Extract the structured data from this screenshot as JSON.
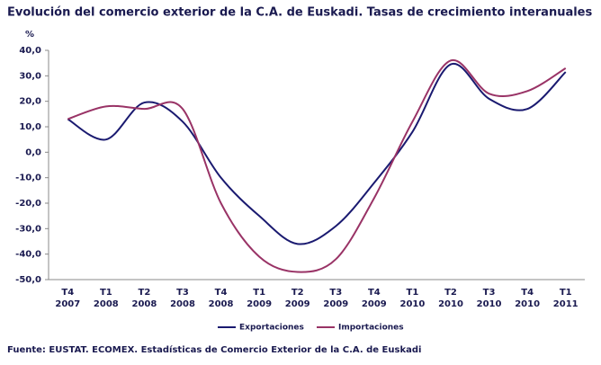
{
  "chart_data": {
    "type": "line",
    "title": "Evolución del comercio exterior de la C.A. de Euskadi. Tasas de crecimiento interanuales",
    "y_unit": "%",
    "source": "Fuente: EUSTAT. ECOMEX. Estadísticas de Comercio Exterior de la C.A. de Euskadi",
    "categories": [
      "T4 2007",
      "T1 2008",
      "T2 2008",
      "T3 2008",
      "T4 2008",
      "T1 2009",
      "T2 2009",
      "T3 2009",
      "T4 2009",
      "T1 2010",
      "T2 2010",
      "T3 2010",
      "T4 2010",
      "T1 2011"
    ],
    "series": [
      {
        "name": "Exportaciones",
        "color": "#1a1a70",
        "values": [
          13,
          5,
          19.5,
          12,
          -10,
          -25,
          -36,
          -29,
          -12,
          8,
          34.5,
          21,
          17,
          31.5
        ]
      },
      {
        "name": "Importaciones",
        "color": "#993366",
        "values": [
          13,
          18,
          17,
          17,
          -20,
          -41,
          -47,
          -42,
          -18,
          12,
          36,
          23,
          24,
          33
        ]
      }
    ],
    "ylim": [
      -50,
      40
    ],
    "yticks": [
      {
        "value": -50,
        "label": "-50,0"
      },
      {
        "value": -40,
        "label": "-40,0"
      },
      {
        "value": -30,
        "label": "-30,0"
      },
      {
        "value": -20,
        "label": "-20,0"
      },
      {
        "value": -10,
        "label": "-10,0"
      },
      {
        "value": 0,
        "label": "0,0"
      },
      {
        "value": 10,
        "label": "10,0"
      },
      {
        "value": 20,
        "label": "20,0"
      },
      {
        "value": 30,
        "label": "30,0"
      },
      {
        "value": 40,
        "label": "40,0"
      }
    ],
    "grid": false,
    "legend": "bottom"
  }
}
